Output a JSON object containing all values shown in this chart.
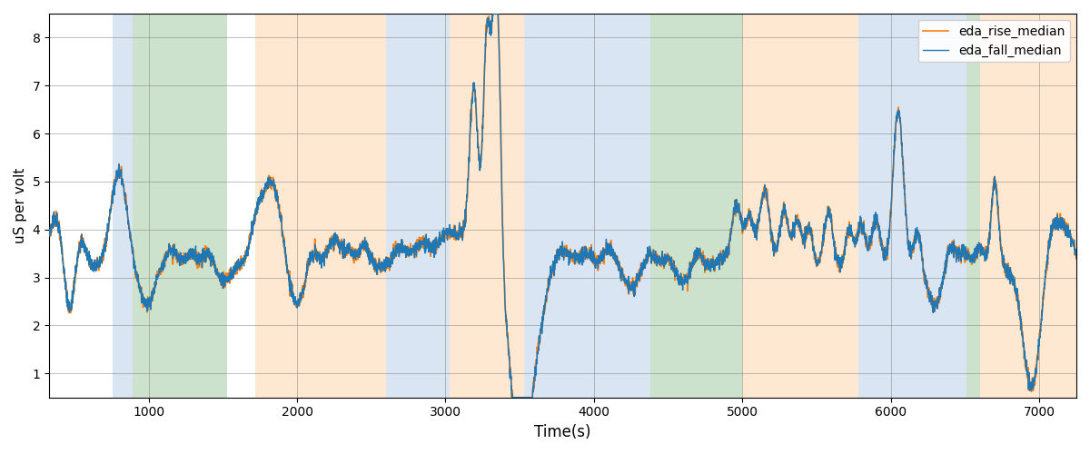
{
  "xlabel": "Time(s)",
  "ylabel": "uS per volt",
  "xlim": [
    330,
    7250
  ],
  "ylim": [
    0.5,
    8.5
  ],
  "yticks": [
    1,
    2,
    3,
    4,
    5,
    6,
    7,
    8
  ],
  "xticks": [
    1000,
    2000,
    3000,
    4000,
    5000,
    6000,
    7000
  ],
  "fall_color": "#1f77b4",
  "rise_color": "#ff7f0e",
  "fall_label": "eda_fall_median",
  "rise_label": "eda_rise_median",
  "background_bands": [
    {
      "xmin": 760,
      "xmax": 890,
      "color": "#aec6e8",
      "alpha": 0.45
    },
    {
      "xmin": 890,
      "xmax": 1530,
      "color": "#90c090",
      "alpha": 0.45
    },
    {
      "xmin": 1720,
      "xmax": 2600,
      "color": "#ffcc99",
      "alpha": 0.45
    },
    {
      "xmin": 2600,
      "xmax": 3030,
      "color": "#aec6e8",
      "alpha": 0.45
    },
    {
      "xmin": 3030,
      "xmax": 3530,
      "color": "#ffcc99",
      "alpha": 0.45
    },
    {
      "xmin": 3530,
      "xmax": 4280,
      "color": "#aec6e8",
      "alpha": 0.45
    },
    {
      "xmin": 4280,
      "xmax": 4380,
      "color": "#aec6e8",
      "alpha": 0.45
    },
    {
      "xmin": 4380,
      "xmax": 5000,
      "color": "#90c090",
      "alpha": 0.45
    },
    {
      "xmin": 5000,
      "xmax": 5780,
      "color": "#ffcc99",
      "alpha": 0.45
    },
    {
      "xmin": 5780,
      "xmax": 6510,
      "color": "#aec6e8",
      "alpha": 0.45
    },
    {
      "xmin": 6510,
      "xmax": 6600,
      "color": "#90c090",
      "alpha": 0.45
    },
    {
      "xmin": 6600,
      "xmax": 7250,
      "color": "#ffcc99",
      "alpha": 0.45
    }
  ],
  "figsize": [
    12,
    5
  ],
  "dpi": 100
}
